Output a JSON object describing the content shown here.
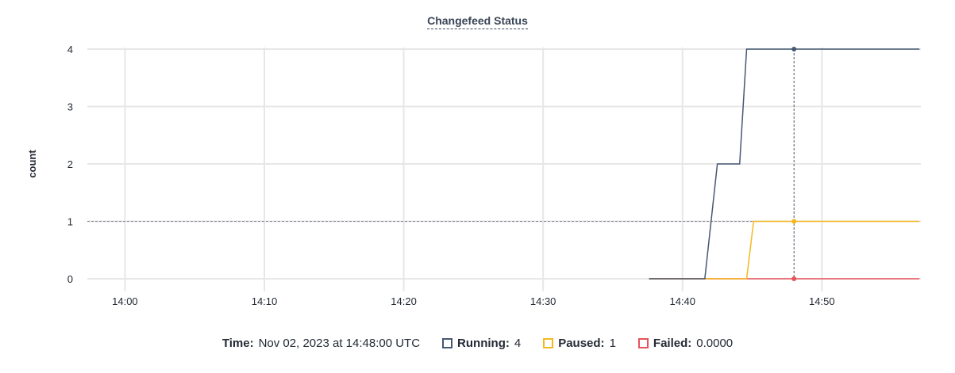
{
  "chart_data": {
    "type": "line",
    "title": "Changefeed Status",
    "xlabel": "",
    "ylabel": "count",
    "xlim": [
      "13:57:18",
      "14:57:06"
    ],
    "ylim": [
      0,
      4
    ],
    "x_ticks": [
      "14:00",
      "14:10",
      "14:20",
      "14:30",
      "14:40",
      "14:50"
    ],
    "y_ticks": [
      0,
      1,
      2,
      3,
      4
    ],
    "grid": true,
    "legend_placement": "bottom",
    "hover_time": "14:48:00",
    "series": [
      {
        "name": "Running",
        "color": "#475872",
        "x": [
          "14:37:36",
          "14:41:36",
          "14:42:30",
          "14:44:06",
          "14:44:36",
          "14:57:00"
        ],
        "y": [
          0,
          0,
          2,
          2,
          4,
          4
        ]
      },
      {
        "name": "Paused",
        "color": "#f5b820",
        "x": [
          "14:37:36",
          "14:44:36",
          "14:45:06",
          "14:57:00"
        ],
        "y": [
          0,
          0,
          1,
          1
        ]
      },
      {
        "name": "Failed",
        "color": "#e5535c",
        "x": [
          "14:37:36",
          "14:57:00"
        ],
        "y": [
          0,
          0
        ]
      }
    ]
  },
  "legend": {
    "time_label": "Time:",
    "time_value": "Nov 02, 2023 at 14:48:00 UTC",
    "items": [
      {
        "label": "Running:",
        "value": "4",
        "color": "#475872"
      },
      {
        "label": "Paused:",
        "value": "1",
        "color": "#f5b820"
      },
      {
        "label": "Failed:",
        "value": "0.0000",
        "color": "#e5535c"
      }
    ]
  }
}
